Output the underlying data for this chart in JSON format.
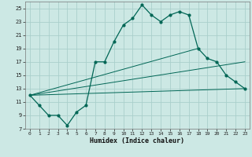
{
  "title": "",
  "xlabel": "Humidex (Indice chaleur)",
  "bg_color": "#cce8e4",
  "grid_color": "#aacfcb",
  "line_color": "#006655",
  "xlim": [
    -0.5,
    23.5
  ],
  "ylim": [
    7,
    26
  ],
  "x_ticks": [
    0,
    1,
    2,
    3,
    4,
    5,
    6,
    7,
    8,
    9,
    10,
    11,
    12,
    13,
    14,
    15,
    16,
    17,
    18,
    19,
    20,
    21,
    22,
    23
  ],
  "y_ticks": [
    7,
    9,
    11,
    13,
    15,
    17,
    19,
    21,
    23,
    25
  ],
  "main_x": [
    0,
    1,
    2,
    3,
    4,
    5,
    6,
    7,
    8,
    9,
    10,
    11,
    12,
    13,
    14,
    15,
    16,
    17,
    18,
    19,
    20,
    21,
    22,
    23
  ],
  "main_y": [
    12,
    10.5,
    9,
    9,
    7.5,
    9.5,
    10.5,
    17,
    17,
    20,
    22.5,
    23.5,
    25.5,
    24,
    23,
    24,
    24.5,
    24,
    19,
    17.5,
    17,
    15,
    14,
    13
  ],
  "fan_lines": [
    {
      "x": [
        0,
        23
      ],
      "y": [
        12,
        13
      ]
    },
    {
      "x": [
        0,
        23
      ],
      "y": [
        12,
        17
      ]
    },
    {
      "x": [
        0,
        18
      ],
      "y": [
        12,
        19
      ]
    }
  ]
}
